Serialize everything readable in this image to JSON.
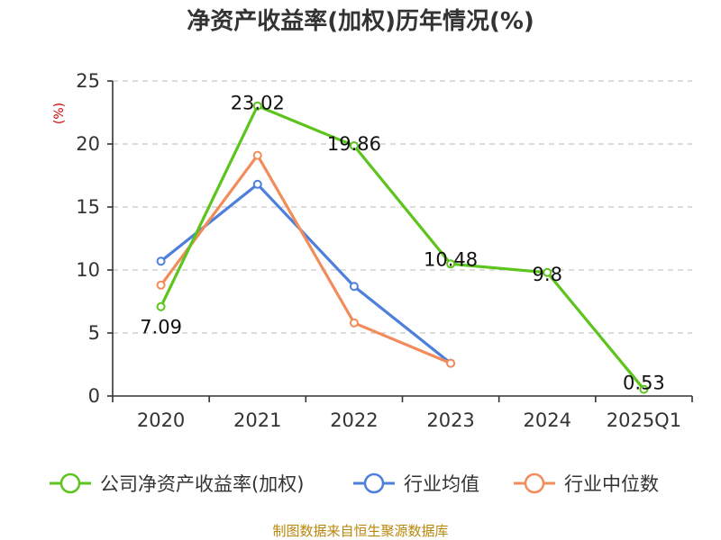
{
  "chart_data": {
    "type": "line",
    "title": "净资产收益率(加权)历年情况(%)",
    "ylabel": "(%)",
    "xlabel": "",
    "categories": [
      "2020",
      "2021",
      "2022",
      "2023",
      "2024",
      "2025Q1"
    ],
    "yticks": [
      "0",
      "5",
      "10",
      "15",
      "20",
      "25"
    ],
    "ylim": [
      0,
      25
    ],
    "grid": true,
    "legend_position": "bottom",
    "series": [
      {
        "name": "公司净资产收益率(加权)",
        "color": "#5cc41c",
        "values": [
          7.09,
          23.02,
          19.86,
          10.48,
          9.8,
          0.53
        ],
        "labels": [
          "7.09",
          "23.02",
          "19.86",
          "10.48",
          "9.8",
          "0.53"
        ]
      },
      {
        "name": "行业均值",
        "color": "#4e7fdc",
        "values": [
          10.7,
          16.8,
          8.7,
          2.6,
          null,
          null
        ]
      },
      {
        "name": "行业中位数",
        "color": "#f28c5a",
        "values": [
          8.8,
          19.1,
          5.8,
          2.6,
          null,
          null
        ]
      }
    ]
  },
  "footer": {
    "source": "制图数据来自恒生聚源数据库"
  }
}
